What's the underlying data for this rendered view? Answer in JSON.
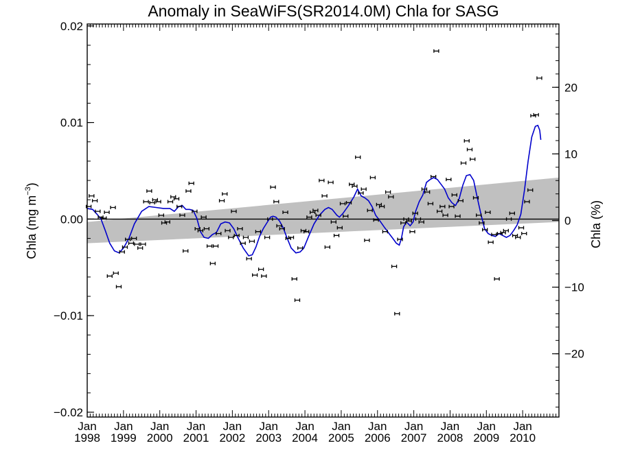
{
  "chart_data": {
    "type": "scatter",
    "title": "Anomaly in SeaWiFS(SR2014.0M) Chla for SASG",
    "ylabel_left_main": "Chla (mg m",
    "ylabel_left_sup": "−3",
    "ylabel_left_close": ")",
    "ylabel_right": "Chla (%)",
    "xlim": [
      1998.0,
      2011.0
    ],
    "ylim_left": [
      -0.0205,
      0.0202
    ],
    "ylim_right": [
      -29.5,
      29.5
    ],
    "y_ticks_left": [
      {
        "value": 0.02,
        "label": "0.02"
      },
      {
        "value": 0.01,
        "label": "0.01"
      },
      {
        "value": 0.0,
        "label": "0.00"
      },
      {
        "value": -0.01,
        "label": "−0.01"
      },
      {
        "value": -0.02,
        "label": "−0.02"
      }
    ],
    "y_ticks_right": [
      {
        "value": 20,
        "label": "20"
      },
      {
        "value": 10,
        "label": "10"
      },
      {
        "value": 0,
        "label": "0"
      },
      {
        "value": -10,
        "label": "−10"
      },
      {
        "value": -20,
        "label": "−20"
      }
    ],
    "x_ticks": [
      {
        "value": 1998,
        "month": "Jan",
        "year": "1998"
      },
      {
        "value": 1999,
        "month": "Jan",
        "year": "1999"
      },
      {
        "value": 2000,
        "month": "Jan",
        "year": "2000"
      },
      {
        "value": 2001,
        "month": "Jan",
        "year": "2001"
      },
      {
        "value": 2002,
        "month": "Jan",
        "year": "2002"
      },
      {
        "value": 2003,
        "month": "Jan",
        "year": "2003"
      },
      {
        "value": 2004,
        "month": "Jan",
        "year": "2004"
      },
      {
        "value": 2005,
        "month": "Jan",
        "year": "2005"
      },
      {
        "value": 2006,
        "month": "Jan",
        "year": "2006"
      },
      {
        "value": 2007,
        "month": "Jan",
        "year": "2007"
      },
      {
        "value": 2008,
        "month": "Jan",
        "year": "2008"
      },
      {
        "value": 2009,
        "month": "Jan",
        "year": "2009"
      },
      {
        "value": 2010,
        "month": "Jan",
        "year": "2010"
      }
    ],
    "grid": false,
    "zero_line": true,
    "colors": {
      "points": "#000000",
      "smooth_line": "#0000cc",
      "trend_band": "#c0c0c0"
    },
    "trend_band": {
      "start": {
        "x": 1998.0,
        "low": -0.0025,
        "high": -0.0003
      },
      "end": {
        "x": 2011.0,
        "low": -0.0003,
        "high": 0.0043
      }
    },
    "points": [
      {
        "x": 1998.04,
        "y": 0.0013
      },
      {
        "x": 1998.12,
        "y": 0.0024
      },
      {
        "x": 1998.21,
        "y": 0.0019
      },
      {
        "x": 1998.29,
        "y": 0.0008
      },
      {
        "x": 1998.37,
        "y": 0.0002
      },
      {
        "x": 1998.46,
        "y": 0.0001
      },
      {
        "x": 1998.54,
        "y": 0.0007
      },
      {
        "x": 1998.62,
        "y": -0.0059
      },
      {
        "x": 1998.71,
        "y": 0.0012
      },
      {
        "x": 1998.79,
        "y": -0.0056
      },
      {
        "x": 1998.87,
        "y": -0.007
      },
      {
        "x": 1998.96,
        "y": -0.0034
      },
      {
        "x": 1999.04,
        "y": -0.0029
      },
      {
        "x": 1999.12,
        "y": -0.0021
      },
      {
        "x": 1999.21,
        "y": -0.0025
      },
      {
        "x": 1999.29,
        "y": -0.002
      },
      {
        "x": 1999.37,
        "y": -0.0026
      },
      {
        "x": 1999.46,
        "y": -0.003
      },
      {
        "x": 1999.54,
        "y": -0.0026
      },
      {
        "x": 1999.62,
        "y": 0.0018
      },
      {
        "x": 1999.71,
        "y": 0.0029
      },
      {
        "x": 1999.79,
        "y": 0.0017
      },
      {
        "x": 1999.87,
        "y": 0.002
      },
      {
        "x": 1999.96,
        "y": 0.0018
      },
      {
        "x": 2000.04,
        "y": 0.0004
      },
      {
        "x": 2000.12,
        "y": -0.0004
      },
      {
        "x": 2000.21,
        "y": -0.0003
      },
      {
        "x": 2000.29,
        "y": 0.0018
      },
      {
        "x": 2000.37,
        "y": 0.0023
      },
      {
        "x": 2000.46,
        "y": 0.0021
      },
      {
        "x": 2000.54,
        "y": 0.0013
      },
      {
        "x": 2000.62,
        "y": 0.0004
      },
      {
        "x": 2000.71,
        "y": -0.0033
      },
      {
        "x": 2000.79,
        "y": 0.0029
      },
      {
        "x": 2000.87,
        "y": 0.0037
      },
      {
        "x": 2000.96,
        "y": 0.0008
      },
      {
        "x": 2001.04,
        "y": -0.001
      },
      {
        "x": 2001.12,
        "y": -0.0012
      },
      {
        "x": 2001.21,
        "y": 0.0002
      },
      {
        "x": 2001.29,
        "y": -0.001
      },
      {
        "x": 2001.37,
        "y": -0.0028
      },
      {
        "x": 2001.46,
        "y": -0.0046
      },
      {
        "x": 2001.54,
        "y": -0.0028
      },
      {
        "x": 2001.62,
        "y": -0.0015
      },
      {
        "x": 2001.71,
        "y": 0.0019
      },
      {
        "x": 2001.79,
        "y": 0.0026
      },
      {
        "x": 2001.87,
        "y": -0.0012
      },
      {
        "x": 2001.96,
        "y": -0.0019
      },
      {
        "x": 2002.04,
        "y": 0.0008
      },
      {
        "x": 2002.12,
        "y": -0.0017
      },
      {
        "x": 2002.21,
        "y": -0.001
      },
      {
        "x": 2002.29,
        "y": -0.0025
      },
      {
        "x": 2002.37,
        "y": -0.0019
      },
      {
        "x": 2002.46,
        "y": -0.0041
      },
      {
        "x": 2002.54,
        "y": -0.0023
      },
      {
        "x": 2002.62,
        "y": -0.0058
      },
      {
        "x": 2002.71,
        "y": -0.0013
      },
      {
        "x": 2002.79,
        "y": -0.0052
      },
      {
        "x": 2002.87,
        "y": -0.0059
      },
      {
        "x": 2002.96,
        "y": -0.0019
      },
      {
        "x": 2003.04,
        "y": 0.0
      },
      {
        "x": 2003.12,
        "y": 0.0033
      },
      {
        "x": 2003.21,
        "y": 0.0018
      },
      {
        "x": 2003.29,
        "y": -0.0007
      },
      {
        "x": 2003.37,
        "y": -0.001
      },
      {
        "x": 2003.46,
        "y": 0.0007
      },
      {
        "x": 2003.54,
        "y": -0.002
      },
      {
        "x": 2003.62,
        "y": -0.0019
      },
      {
        "x": 2003.71,
        "y": -0.0062
      },
      {
        "x": 2003.79,
        "y": -0.0084
      },
      {
        "x": 2003.87,
        "y": -0.003
      },
      {
        "x": 2003.96,
        "y": -0.0012
      },
      {
        "x": 2004.04,
        "y": -0.0013
      },
      {
        "x": 2004.12,
        "y": 0.0002
      },
      {
        "x": 2004.21,
        "y": 0.0007
      },
      {
        "x": 2004.29,
        "y": 0.0009
      },
      {
        "x": 2004.37,
        "y": 0.0004
      },
      {
        "x": 2004.46,
        "y": 0.004
      },
      {
        "x": 2004.54,
        "y": 0.0024
      },
      {
        "x": 2004.62,
        "y": -0.0029
      },
      {
        "x": 2004.71,
        "y": 0.0038
      },
      {
        "x": 2004.79,
        "y": -0.0003
      },
      {
        "x": 2004.87,
        "y": -0.0017
      },
      {
        "x": 2004.96,
        "y": -0.0009
      },
      {
        "x": 2005.04,
        "y": 0.0016
      },
      {
        "x": 2005.12,
        "y": 0.0003
      },
      {
        "x": 2005.21,
        "y": 0.0017
      },
      {
        "x": 2005.29,
        "y": 0.0036
      },
      {
        "x": 2005.37,
        "y": 0.0034
      },
      {
        "x": 2005.46,
        "y": 0.0064
      },
      {
        "x": 2005.54,
        "y": 0.0027
      },
      {
        "x": 2005.62,
        "y": 0.0031
      },
      {
        "x": 2005.71,
        "y": -0.0022
      },
      {
        "x": 2005.79,
        "y": 0.0009
      },
      {
        "x": 2005.87,
        "y": 0.0043
      },
      {
        "x": 2005.96,
        "y": -0.0001
      },
      {
        "x": 2006.04,
        "y": 0.0015
      },
      {
        "x": 2006.12,
        "y": 0.0013
      },
      {
        "x": 2006.21,
        "y": -0.0013
      },
      {
        "x": 2006.29,
        "y": 0.0028
      },
      {
        "x": 2006.37,
        "y": 0.0023
      },
      {
        "x": 2006.46,
        "y": -0.0049
      },
      {
        "x": 2006.54,
        "y": -0.0098
      },
      {
        "x": 2006.62,
        "y": -0.0021
      },
      {
        "x": 2006.71,
        "y": -0.0004
      },
      {
        "x": 2006.79,
        "y": 0.0
      },
      {
        "x": 2006.87,
        "y": -0.0002
      },
      {
        "x": 2006.96,
        "y": -0.0013
      },
      {
        "x": 2007.04,
        "y": 0.0006
      },
      {
        "x": 2007.12,
        "y": 0.0
      },
      {
        "x": 2007.21,
        "y": -0.0003
      },
      {
        "x": 2007.29,
        "y": 0.0031
      },
      {
        "x": 2007.37,
        "y": 0.0028
      },
      {
        "x": 2007.46,
        "y": 0.0016
      },
      {
        "x": 2007.54,
        "y": 0.0044
      },
      {
        "x": 2007.62,
        "y": 0.0174
      },
      {
        "x": 2007.71,
        "y": 0.0008
      },
      {
        "x": 2007.79,
        "y": 0.0013
      },
      {
        "x": 2007.87,
        "y": 0.0004
      },
      {
        "x": 2007.96,
        "y": 0.0041
      },
      {
        "x": 2008.04,
        "y": 0.0013
      },
      {
        "x": 2008.12,
        "y": 0.0025
      },
      {
        "x": 2008.21,
        "y": 0.0003
      },
      {
        "x": 2008.29,
        "y": 0.0019
      },
      {
        "x": 2008.37,
        "y": 0.0058
      },
      {
        "x": 2008.46,
        "y": 0.0081
      },
      {
        "x": 2008.54,
        "y": 0.0072
      },
      {
        "x": 2008.62,
        "y": 0.0062
      },
      {
        "x": 2008.71,
        "y": 0.0022
      },
      {
        "x": 2008.79,
        "y": 0.0004
      },
      {
        "x": 2008.87,
        "y": -0.0004
      },
      {
        "x": 2008.96,
        "y": -0.0011
      },
      {
        "x": 2009.04,
        "y": 0.0007
      },
      {
        "x": 2009.12,
        "y": -0.0024
      },
      {
        "x": 2009.21,
        "y": -0.0016
      },
      {
        "x": 2009.29,
        "y": -0.0062
      },
      {
        "x": 2009.37,
        "y": -0.0015
      },
      {
        "x": 2009.46,
        "y": -0.0014
      },
      {
        "x": 2009.54,
        "y": -0.0012
      },
      {
        "x": 2009.62,
        "y": 0.0
      },
      {
        "x": 2009.71,
        "y": 0.0006
      },
      {
        "x": 2009.79,
        "y": -0.0017
      },
      {
        "x": 2009.87,
        "y": -0.0019
      },
      {
        "x": 2009.96,
        "y": -0.0009
      },
      {
        "x": 2010.04,
        "y": -0.0015
      },
      {
        "x": 2010.12,
        "y": 0.0018
      },
      {
        "x": 2010.21,
        "y": 0.003
      },
      {
        "x": 2010.29,
        "y": 0.0107
      },
      {
        "x": 2010.37,
        "y": 0.0108
      },
      {
        "x": 2010.46,
        "y": 0.0146
      }
    ],
    "smooth_line": [
      {
        "x": 1998.0,
        "y": 0.0011
      },
      {
        "x": 1998.15,
        "y": 0.001
      },
      {
        "x": 1998.27,
        "y": 0.0005
      },
      {
        "x": 1998.38,
        "y": 0.0
      },
      {
        "x": 1998.5,
        "y": -0.0012
      },
      {
        "x": 1998.62,
        "y": -0.0025
      },
      {
        "x": 1998.75,
        "y": -0.0033
      },
      {
        "x": 1998.88,
        "y": -0.0035
      },
      {
        "x": 1999.0,
        "y": -0.003
      },
      {
        "x": 1999.15,
        "y": -0.002
      },
      {
        "x": 1999.3,
        "y": -0.0005
      },
      {
        "x": 1999.5,
        "y": 0.0008
      },
      {
        "x": 1999.7,
        "y": 0.0013
      },
      {
        "x": 1999.9,
        "y": 0.0012
      },
      {
        "x": 2000.1,
        "y": 0.0011
      },
      {
        "x": 2000.28,
        "y": 0.0011
      },
      {
        "x": 2000.4,
        "y": 0.0008
      },
      {
        "x": 2000.52,
        "y": 0.0013
      },
      {
        "x": 2000.62,
        "y": 0.0014
      },
      {
        "x": 2000.72,
        "y": 0.001
      },
      {
        "x": 2000.82,
        "y": 0.001
      },
      {
        "x": 2000.92,
        "y": 0.0009
      },
      {
        "x": 2001.02,
        "y": 0.0001
      },
      {
        "x": 2001.12,
        "y": -0.0013
      },
      {
        "x": 2001.22,
        "y": -0.0019
      },
      {
        "x": 2001.34,
        "y": -0.002
      },
      {
        "x": 2001.45,
        "y": -0.0016
      },
      {
        "x": 2001.56,
        "y": -0.0014
      },
      {
        "x": 2001.68,
        "y": -0.0005
      },
      {
        "x": 2001.8,
        "y": -0.0003
      },
      {
        "x": 2001.92,
        "y": -0.0004
      },
      {
        "x": 2002.04,
        "y": -0.001
      },
      {
        "x": 2002.15,
        "y": -0.0019
      },
      {
        "x": 2002.3,
        "y": -0.003
      },
      {
        "x": 2002.45,
        "y": -0.0038
      },
      {
        "x": 2002.55,
        "y": -0.0037
      },
      {
        "x": 2002.65,
        "y": -0.0029
      },
      {
        "x": 2002.75,
        "y": -0.0018
      },
      {
        "x": 2002.85,
        "y": -0.001
      },
      {
        "x": 2002.95,
        "y": -0.0004
      },
      {
        "x": 2003.05,
        "y": 0.0002
      },
      {
        "x": 2003.12,
        "y": 0.0003
      },
      {
        "x": 2003.2,
        "y": 0.0002
      },
      {
        "x": 2003.3,
        "y": -0.0002
      },
      {
        "x": 2003.4,
        "y": -0.0009
      },
      {
        "x": 2003.5,
        "y": -0.0019
      },
      {
        "x": 2003.62,
        "y": -0.003
      },
      {
        "x": 2003.75,
        "y": -0.0035
      },
      {
        "x": 2003.87,
        "y": -0.0034
      },
      {
        "x": 2003.97,
        "y": -0.003
      },
      {
        "x": 2004.1,
        "y": -0.0018
      },
      {
        "x": 2004.25,
        "y": -0.0005
      },
      {
        "x": 2004.4,
        "y": 0.0004
      },
      {
        "x": 2004.55,
        "y": 0.001
      },
      {
        "x": 2004.65,
        "y": 0.0012
      },
      {
        "x": 2004.75,
        "y": 0.001
      },
      {
        "x": 2004.88,
        "y": 0.0004
      },
      {
        "x": 2004.95,
        "y": 0.0002
      },
      {
        "x": 2005.05,
        "y": 0.0006
      },
      {
        "x": 2005.2,
        "y": 0.0014
      },
      {
        "x": 2005.35,
        "y": 0.0023
      },
      {
        "x": 2005.45,
        "y": 0.0031
      },
      {
        "x": 2005.55,
        "y": 0.0024
      },
      {
        "x": 2005.65,
        "y": 0.0022
      },
      {
        "x": 2005.75,
        "y": 0.0019
      },
      {
        "x": 2005.85,
        "y": 0.0013
      },
      {
        "x": 2005.95,
        "y": 0.0004
      },
      {
        "x": 2006.05,
        "y": -0.0001
      },
      {
        "x": 2006.18,
        "y": -0.0008
      },
      {
        "x": 2006.3,
        "y": -0.0014
      },
      {
        "x": 2006.42,
        "y": -0.002
      },
      {
        "x": 2006.52,
        "y": -0.0025
      },
      {
        "x": 2006.6,
        "y": -0.0027
      },
      {
        "x": 2006.66,
        "y": -0.002
      },
      {
        "x": 2006.72,
        "y": -0.0008
      },
      {
        "x": 2006.8,
        "y": -0.0003
      },
      {
        "x": 2006.9,
        "y": -0.0007
      },
      {
        "x": 2006.98,
        "y": -0.0003
      },
      {
        "x": 2007.05,
        "y": 0.0008
      },
      {
        "x": 2007.15,
        "y": 0.0018
      },
      {
        "x": 2007.25,
        "y": 0.0025
      },
      {
        "x": 2007.35,
        "y": 0.0038
      },
      {
        "x": 2007.45,
        "y": 0.0041
      },
      {
        "x": 2007.55,
        "y": 0.0043
      },
      {
        "x": 2007.65,
        "y": 0.0041
      },
      {
        "x": 2007.75,
        "y": 0.0036
      },
      {
        "x": 2007.85,
        "y": 0.0031
      },
      {
        "x": 2007.95,
        "y": 0.0022
      },
      {
        "x": 2008.05,
        "y": 0.0017
      },
      {
        "x": 2008.15,
        "y": 0.0014
      },
      {
        "x": 2008.25,
        "y": 0.0021
      },
      {
        "x": 2008.35,
        "y": 0.0035
      },
      {
        "x": 2008.45,
        "y": 0.0045
      },
      {
        "x": 2008.55,
        "y": 0.0046
      },
      {
        "x": 2008.65,
        "y": 0.004
      },
      {
        "x": 2008.75,
        "y": 0.0022
      },
      {
        "x": 2008.85,
        "y": 0.0005
      },
      {
        "x": 2008.95,
        "y": -0.001
      },
      {
        "x": 2009.05,
        "y": -0.0015
      },
      {
        "x": 2009.15,
        "y": -0.0017
      },
      {
        "x": 2009.25,
        "y": -0.0018
      },
      {
        "x": 2009.35,
        "y": -0.0015
      },
      {
        "x": 2009.45,
        "y": -0.0017
      },
      {
        "x": 2009.55,
        "y": -0.0019
      },
      {
        "x": 2009.65,
        "y": -0.0017
      },
      {
        "x": 2009.75,
        "y": -0.0012
      },
      {
        "x": 2009.85,
        "y": -0.0006
      },
      {
        "x": 2009.95,
        "y": 0.0005
      },
      {
        "x": 2010.05,
        "y": 0.003
      },
      {
        "x": 2010.15,
        "y": 0.006
      },
      {
        "x": 2010.25,
        "y": 0.0085
      },
      {
        "x": 2010.35,
        "y": 0.0096
      },
      {
        "x": 2010.42,
        "y": 0.0097
      },
      {
        "x": 2010.47,
        "y": 0.0092
      },
      {
        "x": 2010.5,
        "y": 0.0082
      }
    ]
  }
}
